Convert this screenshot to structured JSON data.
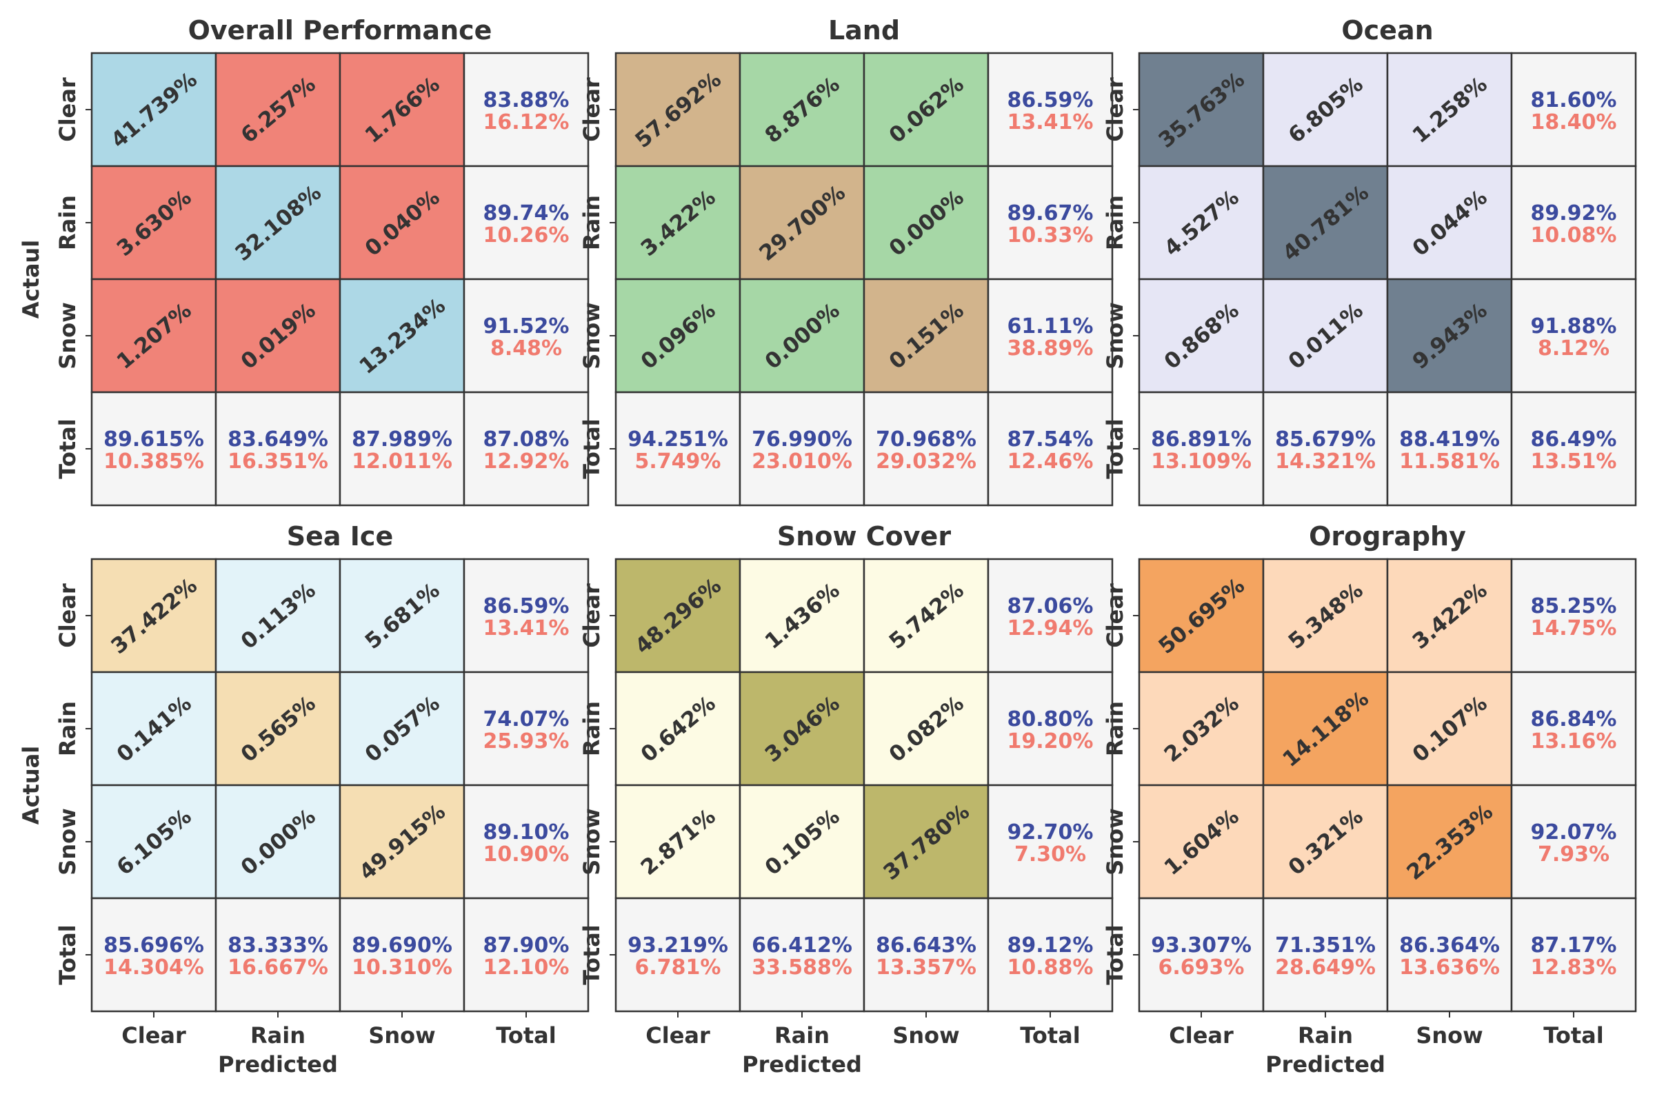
{
  "chart_data": [
    {
      "type": "heatmap",
      "title": "Overall Performance",
      "ylabel": "Actaul",
      "xlabel": "Predicted",
      "categories": [
        "Clear",
        "Rain",
        "Snow",
        "Total"
      ],
      "matrix": [
        [
          "41.739%",
          "6.257%",
          "1.766%"
        ],
        [
          "3.630%",
          "32.108%",
          "0.040%"
        ],
        [
          "1.207%",
          "0.019%",
          "13.234%"
        ]
      ],
      "row_totals": [
        [
          "83.88%",
          "16.12%"
        ],
        [
          "89.74%",
          "10.26%"
        ],
        [
          "91.52%",
          "8.48%"
        ]
      ],
      "col_totals": [
        [
          "89.615%",
          "10.385%"
        ],
        [
          "83.649%",
          "16.351%"
        ],
        [
          "87.989%",
          "12.011%"
        ]
      ],
      "overall": [
        "87.08%",
        "12.92%"
      ],
      "colors": {
        "diag": "#add8e6",
        "off": "#f08378",
        "total": "#f5f5f5"
      }
    },
    {
      "type": "heatmap",
      "title": "Land",
      "ylabel": "",
      "xlabel": "Predicted",
      "categories": [
        "Clear",
        "Rain",
        "Snow",
        "Total"
      ],
      "matrix": [
        [
          "57.692%",
          "8.876%",
          "0.062%"
        ],
        [
          "3.422%",
          "29.700%",
          "0.000%"
        ],
        [
          "0.096%",
          "0.000%",
          "0.151%"
        ]
      ],
      "row_totals": [
        [
          "86.59%",
          "13.41%"
        ],
        [
          "89.67%",
          "10.33%"
        ],
        [
          "61.11%",
          "38.89%"
        ]
      ],
      "col_totals": [
        [
          "94.251%",
          "5.749%"
        ],
        [
          "76.990%",
          "23.010%"
        ],
        [
          "70.968%",
          "29.032%"
        ]
      ],
      "overall": [
        "87.54%",
        "12.46%"
      ],
      "colors": {
        "diag": "#d2b48c",
        "off": "#a6d7a6",
        "total": "#f5f5f5"
      }
    },
    {
      "type": "heatmap",
      "title": "Ocean",
      "ylabel": "",
      "xlabel": "Predicted",
      "categories": [
        "Clear",
        "Rain",
        "Snow",
        "Total"
      ],
      "matrix": [
        [
          "35.763%",
          "6.805%",
          "1.258%"
        ],
        [
          "4.527%",
          "40.781%",
          "0.044%"
        ],
        [
          "0.868%",
          "0.011%",
          "9.943%"
        ]
      ],
      "row_totals": [
        [
          "81.60%",
          "18.40%"
        ],
        [
          "89.92%",
          "10.08%"
        ],
        [
          "91.88%",
          "8.12%"
        ]
      ],
      "col_totals": [
        [
          "86.891%",
          "13.109%"
        ],
        [
          "85.679%",
          "14.321%"
        ],
        [
          "88.419%",
          "11.581%"
        ]
      ],
      "overall": [
        "86.49%",
        "13.51%"
      ],
      "colors": {
        "diag": "#708090",
        "off": "#e6e6f5",
        "total": "#f5f5f5"
      }
    },
    {
      "type": "heatmap",
      "title": "Sea Ice",
      "ylabel": "Actual",
      "xlabel": "Predicted",
      "categories": [
        "Clear",
        "Rain",
        "Snow",
        "Total"
      ],
      "matrix": [
        [
          "37.422%",
          "0.113%",
          "5.681%"
        ],
        [
          "0.141%",
          "0.565%",
          "0.057%"
        ],
        [
          "6.105%",
          "0.000%",
          "49.915%"
        ]
      ],
      "row_totals": [
        [
          "86.59%",
          "13.41%"
        ],
        [
          "74.07%",
          "25.93%"
        ],
        [
          "89.10%",
          "10.90%"
        ]
      ],
      "col_totals": [
        [
          "85.696%",
          "14.304%"
        ],
        [
          "83.333%",
          "16.667%"
        ],
        [
          "89.690%",
          "10.310%"
        ]
      ],
      "overall": [
        "87.90%",
        "12.10%"
      ],
      "colors": {
        "diag": "#f5deb3",
        "off": "#e3f3f9",
        "total": "#f5f5f5"
      }
    },
    {
      "type": "heatmap",
      "title": "Snow Cover",
      "ylabel": "",
      "xlabel": "Predicted",
      "categories": [
        "Clear",
        "Rain",
        "Snow",
        "Total"
      ],
      "matrix": [
        [
          "48.296%",
          "1.436%",
          "5.742%"
        ],
        [
          "0.642%",
          "3.046%",
          "0.082%"
        ],
        [
          "2.871%",
          "0.105%",
          "37.780%"
        ]
      ],
      "row_totals": [
        [
          "87.06%",
          "12.94%"
        ],
        [
          "80.80%",
          "19.20%"
        ],
        [
          "92.70%",
          "7.30%"
        ]
      ],
      "col_totals": [
        [
          "93.219%",
          "6.781%"
        ],
        [
          "66.412%",
          "33.588%"
        ],
        [
          "86.643%",
          "13.357%"
        ]
      ],
      "overall": [
        "89.12%",
        "10.88%"
      ],
      "colors": {
        "diag": "#bdb76b",
        "off": "#fdfbe4",
        "total": "#f5f5f5"
      }
    },
    {
      "type": "heatmap",
      "title": "Orography",
      "ylabel": "",
      "xlabel": "Predicted",
      "categories": [
        "Clear",
        "Rain",
        "Snow",
        "Total"
      ],
      "matrix": [
        [
          "50.695%",
          "5.348%",
          "3.422%"
        ],
        [
          "2.032%",
          "14.118%",
          "0.107%"
        ],
        [
          "1.604%",
          "0.321%",
          "22.353%"
        ]
      ],
      "row_totals": [
        [
          "85.25%",
          "14.75%"
        ],
        [
          "86.84%",
          "13.16%"
        ],
        [
          "92.07%",
          "7.93%"
        ]
      ],
      "col_totals": [
        [
          "93.307%",
          "6.693%"
        ],
        [
          "71.351%",
          "28.649%"
        ],
        [
          "86.364%",
          "13.636%"
        ]
      ],
      "overall": [
        "87.17%",
        "12.83%"
      ],
      "colors": {
        "diag": "#f4a460",
        "off": "#fdd9ba",
        "total": "#f5f5f5"
      }
    }
  ]
}
